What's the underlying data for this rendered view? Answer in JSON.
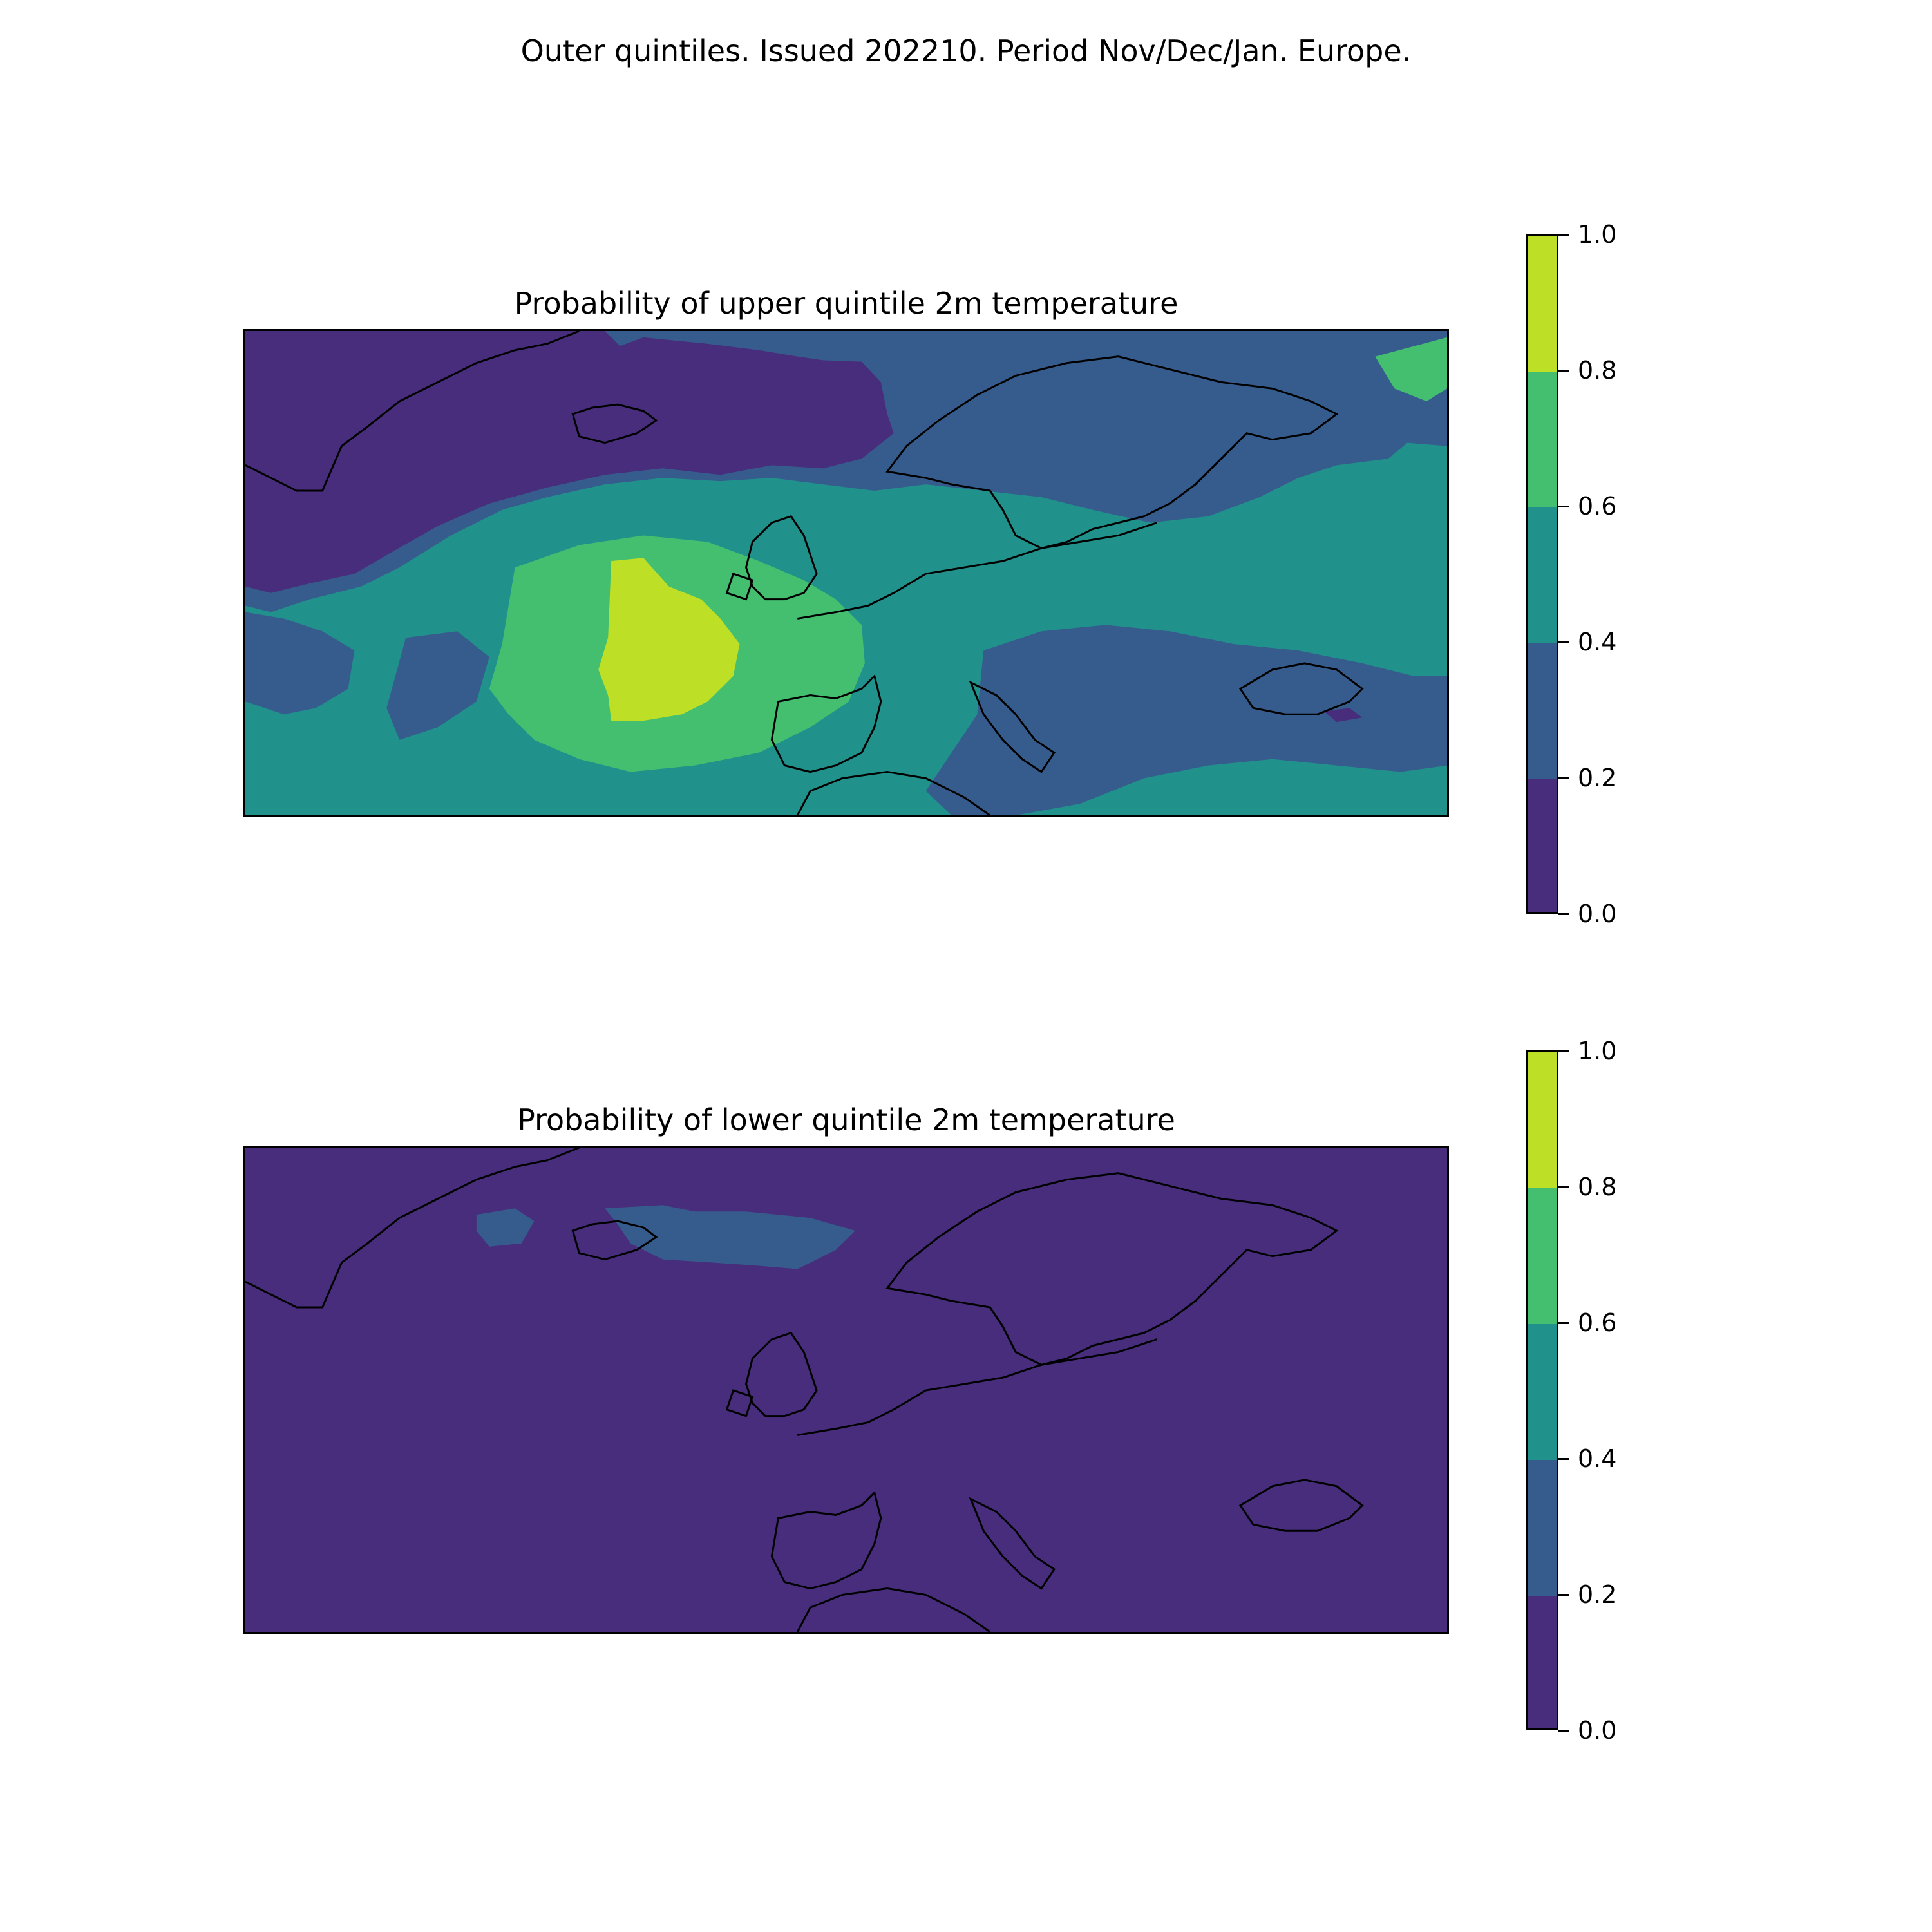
{
  "suptitle": "Outer quintiles. Issued 202210. Period Nov/Dec/Jan. Europe.",
  "colormap": {
    "levels": [
      0.0,
      0.2,
      0.4,
      0.6,
      0.8,
      1.0
    ],
    "colors": [
      "#472d7b",
      "#365c8d",
      "#21918c",
      "#44bf70",
      "#bddf26"
    ],
    "tick_labels": [
      "0.0",
      "0.2",
      "0.4",
      "0.6",
      "0.8",
      "1.0"
    ]
  },
  "panels": [
    {
      "title": "Probability of upper quintile 2m temperature",
      "background_color": "#21918c"
    },
    {
      "title": "Probability of lower quintile 2m temperature",
      "background_color": "#472d7b"
    }
  ]
}
